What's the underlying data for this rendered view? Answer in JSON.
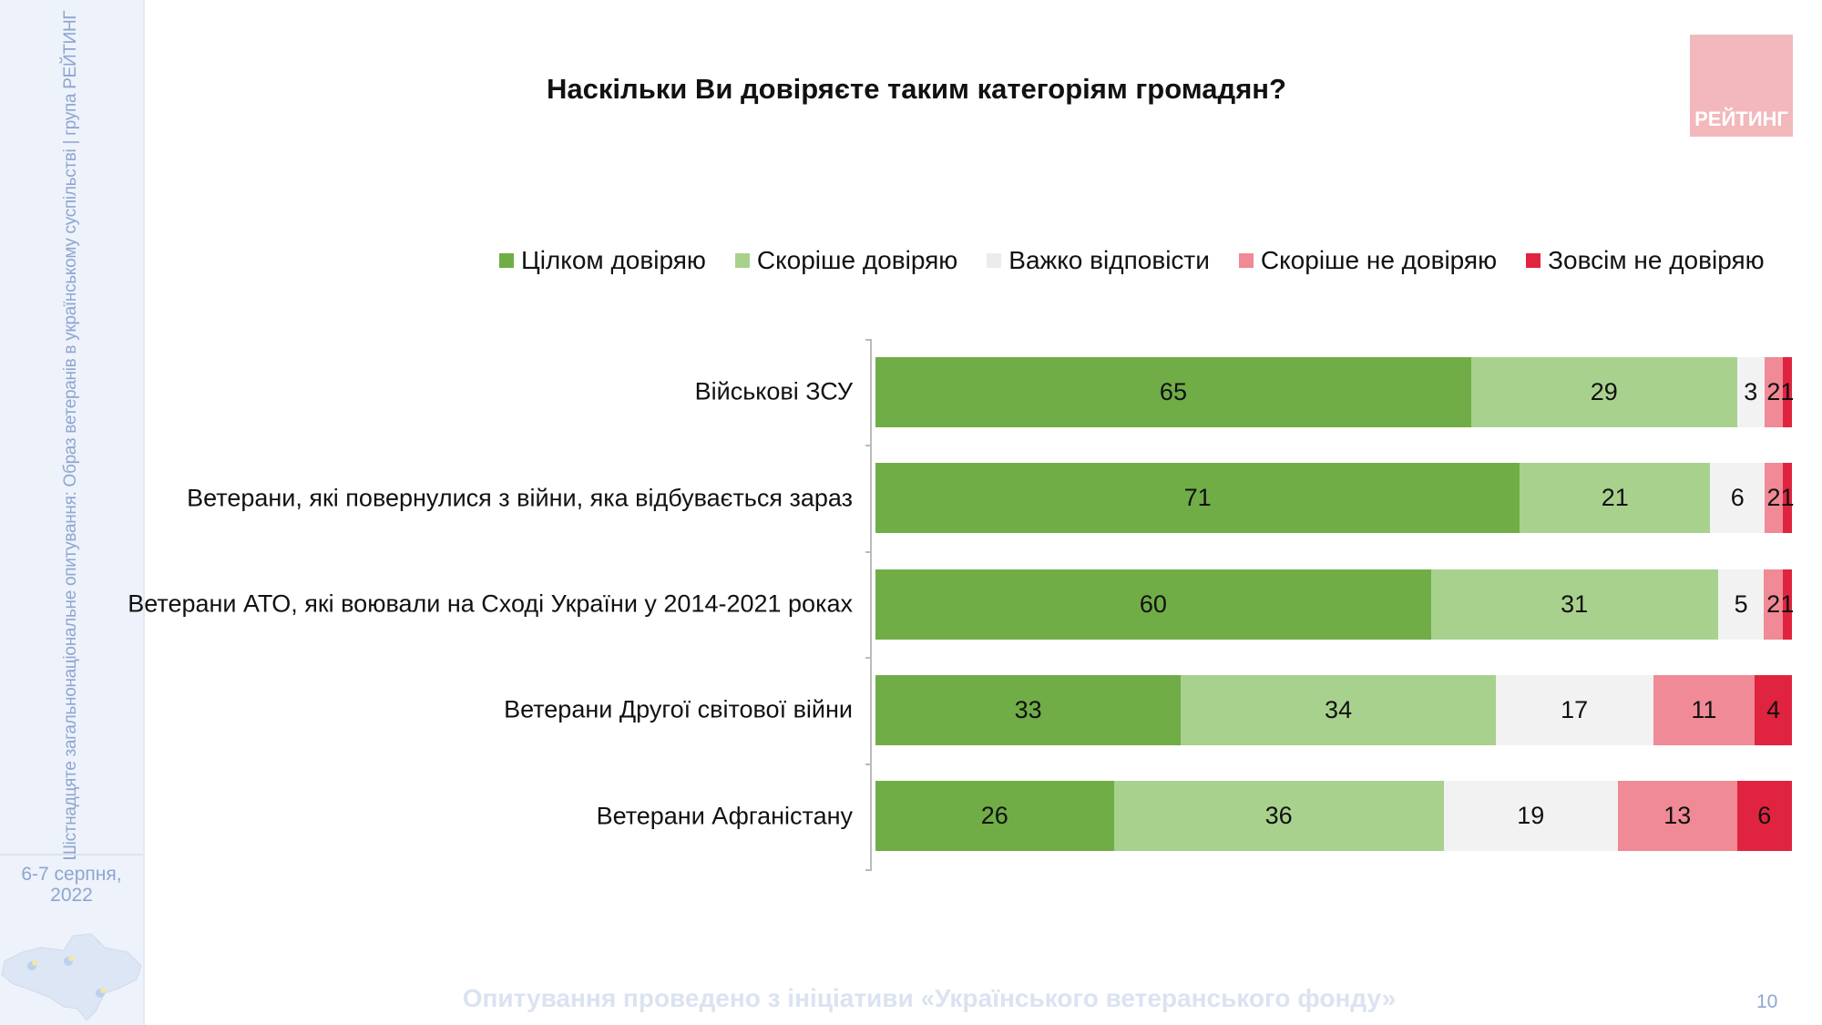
{
  "sidebar": {
    "vertical_text": "Шістнадцяте загальнонаціональне опитування: Образ ветеранів в українському суспільстві | група РЕЙТИНГ",
    "date": "6-7 серпня, 2022"
  },
  "logo": {
    "text": "РЕЙТИНГ"
  },
  "footer": {
    "text": "Опитування проведено з ініціативи «Українського ветеранського фонду»",
    "page_number": "10"
  },
  "chart_data": {
    "type": "bar",
    "orientation": "horizontal-stacked-100",
    "title": "Наскільки Ви довіряєте таким категоріям громадян?",
    "legend_position": "top",
    "grid": false,
    "categories": [
      "Військові ЗСУ",
      "Ветерани, які повернулися з війни, яка відбувається зараз",
      "Ветерани АТО, які воювали на Сході України у 2014-2021 роках",
      "Ветерани Другої світової війни",
      "Ветерани Афганістану"
    ],
    "series": [
      {
        "name": "Цілком довіряю",
        "color": "#70ad47",
        "values": [
          65,
          71,
          60,
          33,
          26
        ]
      },
      {
        "name": "Скоріше довіряю",
        "color": "#a9d18e",
        "values": [
          29,
          21,
          31,
          34,
          36
        ]
      },
      {
        "name": "Важко відповісти",
        "color": "#f2f2f2",
        "values": [
          3,
          6,
          5,
          17,
          19
        ]
      },
      {
        "name": "Скоріше не довіряю",
        "color": "#f08a96",
        "values": [
          2,
          2,
          2,
          11,
          13
        ]
      },
      {
        "name": "Зовсім не довіряю",
        "color": "#e0243f",
        "values": [
          1,
          1,
          1,
          4,
          6
        ]
      }
    ]
  }
}
